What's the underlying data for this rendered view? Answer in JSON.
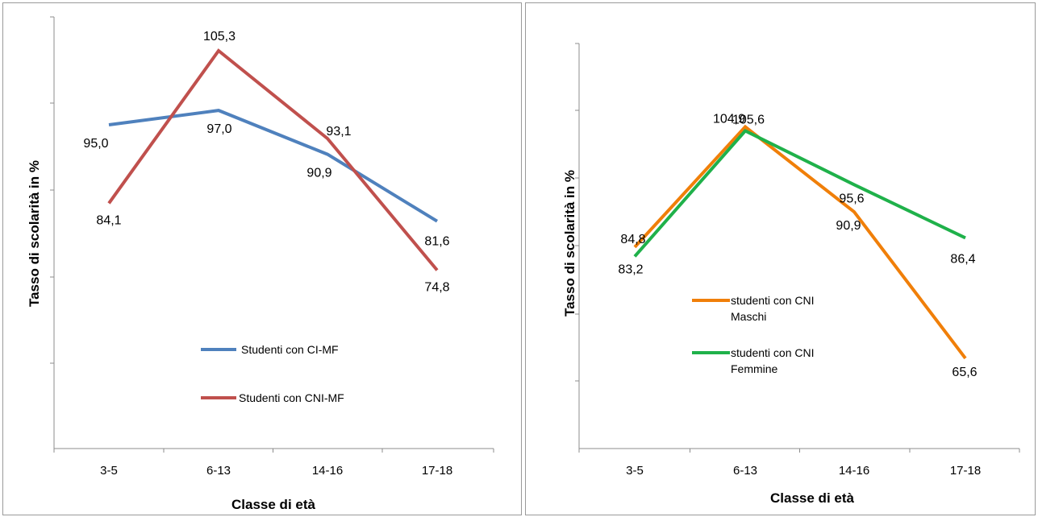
{
  "chart_data": [
    {
      "type": "line",
      "title": "",
      "xlabel": "Classe di età",
      "ylabel": "Tasso di scolarità in %",
      "categories": [
        "3-5",
        "6-13",
        "14-16",
        "17-18"
      ],
      "ylim": [
        50,
        110
      ],
      "grid": false,
      "legend_position": "bottom-right",
      "series": [
        {
          "name": "Studenti con CI-MF",
          "values": [
            95.0,
            97.0,
            90.9,
            81.6
          ],
          "labels": [
            "95,0",
            "97,0",
            "90,9",
            "81,6"
          ],
          "color": "#4F81BD"
        },
        {
          "name": "Studenti con CNI-MF",
          "values": [
            84.1,
            105.3,
            93.1,
            74.8
          ],
          "labels": [
            "84,1",
            "105,3",
            "93,1",
            "74,8"
          ],
          "color": "#C0504D"
        }
      ]
    },
    {
      "type": "line",
      "title": "",
      "xlabel": "Classe di età",
      "ylabel": "Tasso di scolarità in %",
      "categories": [
        "3-5",
        "6-13",
        "14-16",
        "17-18"
      ],
      "ylim": [
        50,
        120
      ],
      "grid": false,
      "legend_position": "bottom-right",
      "series": [
        {
          "name": "studenti con CNI Maschi",
          "values": [
            84.8,
            105.6,
            90.9,
            65.6
          ],
          "labels": [
            "84,8",
            "105,6",
            "90,9",
            "65,6"
          ],
          "color": "#F07F09"
        },
        {
          "name": "studenti con CNI Femmine",
          "values": [
            83.2,
            104.9,
            95.6,
            86.4
          ],
          "labels": [
            "83,2",
            "104,9",
            "95,6",
            "86,4"
          ],
          "color": "#1FB14A"
        }
      ]
    }
  ]
}
